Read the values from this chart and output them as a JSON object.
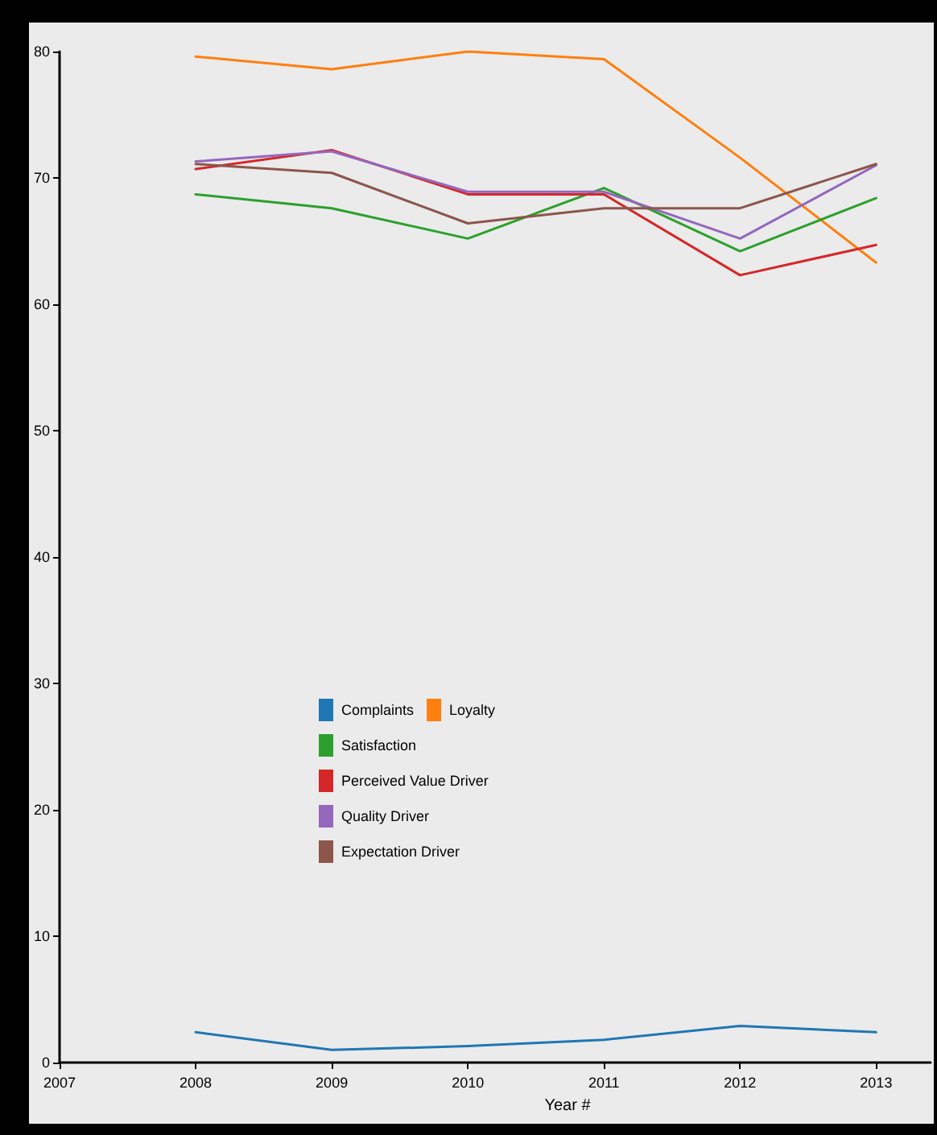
{
  "chart_data": {
    "type": "line",
    "xlabel": "Year #",
    "x": [
      2008,
      2009,
      2010,
      2011,
      2012,
      2013
    ],
    "xlim": [
      2007,
      2013.4
    ],
    "xticks": [
      2007,
      2008,
      2009,
      2010,
      2011,
      2012,
      2013
    ],
    "ylim": [
      0,
      80
    ],
    "yticks": [
      0,
      10,
      20,
      30,
      40,
      50,
      60,
      70,
      80
    ],
    "grid": false,
    "legend": "left",
    "marker": "none",
    "line_style": "solid",
    "series": [
      {
        "name": "Complaints",
        "color": "#1f77b4",
        "values": [
          2.4,
          1.0,
          1.3,
          1.8,
          2.9,
          2.4
        ]
      },
      {
        "name": "Loyalty",
        "color": "#ff7f0e",
        "values": [
          79.6,
          78.6,
          80,
          79.4,
          71.6,
          63.3
        ]
      },
      {
        "name": "Satisfaction",
        "color": "#2ca02c",
        "values": [
          68.7,
          67.6,
          65.2,
          69.2,
          64.2,
          68.4
        ]
      },
      {
        "name": "Perceived Value Driver",
        "color": "#d62728",
        "values": [
          70.7,
          72.2,
          68.7,
          68.7,
          62.3,
          64.7
        ]
      },
      {
        "name": "Quality Driver",
        "color": "#9467bd",
        "values": [
          71.3,
          72.1,
          68.9,
          68.9,
          65.2,
          71.0
        ]
      },
      {
        "name": "Expectation Driver",
        "color": "#8c564b",
        "values": [
          71.1,
          70.4,
          66.4,
          67.6,
          67.6,
          71.1
        ]
      }
    ]
  }
}
